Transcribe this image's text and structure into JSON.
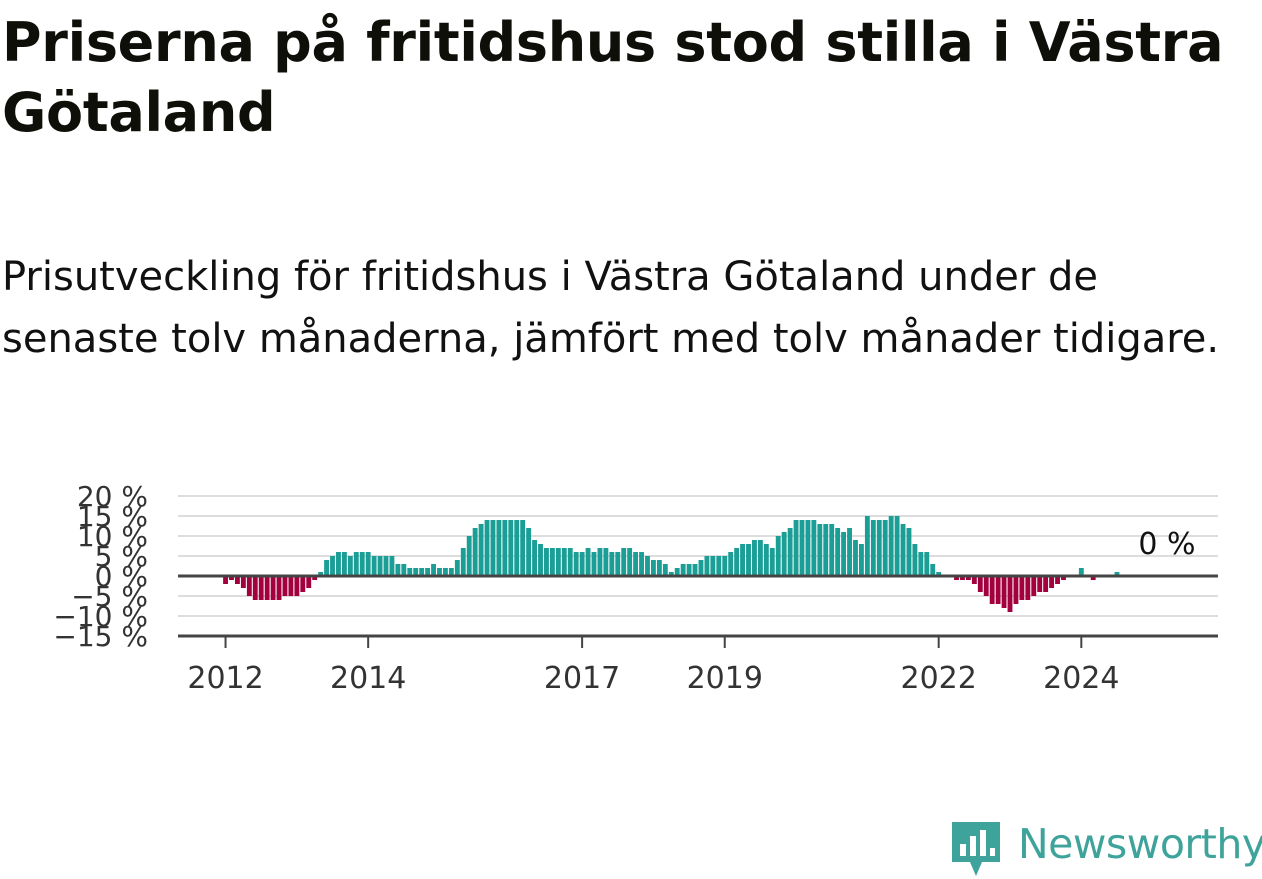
{
  "title": "Priserna på fritidshus stod stilla i Västra Götaland",
  "subtitle": "Prisutveckling för fritidshus i Västra Götaland under de senaste tolv månaderna, jämfört med tolv månader tidigare.",
  "brand": {
    "name": "Newsworthy",
    "icon": "newsworthy-logo-icon"
  },
  "colors": {
    "positive": "#1a9e96",
    "negative": "#a3003e",
    "grid": "#dddddd",
    "zero_line": "#444444",
    "axis_text": "#333333"
  },
  "chart_data": {
    "type": "bar",
    "x_ticks": [
      "2012",
      "2014",
      "2017",
      "2019",
      "2022",
      "2024"
    ],
    "y_ticks": [
      "20 %",
      "15 %",
      "10 %",
      "5 %",
      "0 %",
      "−5 %",
      "−10 %",
      "−15 %"
    ],
    "y_tick_values": [
      20,
      15,
      10,
      5,
      0,
      -5,
      -10,
      -15
    ],
    "ylim": [
      -15,
      20
    ],
    "xlim": [
      "2011-05",
      "2025-12"
    ],
    "grid": true,
    "last_value_label": "0 %",
    "series": [
      {
        "start": "2012-01",
        "frequency": "monthly",
        "values": [
          -2,
          -1,
          -2,
          -3,
          -5,
          -6,
          -6,
          -6,
          -6,
          -6,
          -5,
          -5,
          -5,
          -4,
          -3,
          -1,
          1,
          4,
          5,
          6,
          6,
          5,
          6,
          6,
          6,
          5,
          5,
          5,
          5,
          3,
          3,
          2,
          2,
          2,
          2,
          3,
          2,
          2,
          2,
          4,
          7,
          10,
          12,
          13,
          14,
          14,
          14,
          14,
          14,
          14,
          14,
          12,
          9,
          8,
          7,
          7,
          7,
          7,
          7,
          6,
          6,
          7,
          6,
          7,
          7,
          6,
          6,
          7,
          7,
          6,
          6,
          5,
          4,
          4,
          3,
          1,
          2,
          3,
          3,
          3,
          4,
          5,
          5,
          5,
          5,
          6,
          7,
          8,
          8,
          9,
          9,
          8,
          7,
          10,
          11,
          12,
          14,
          14,
          14,
          14,
          13,
          13,
          13,
          12,
          11,
          12,
          9,
          8,
          15,
          14,
          14,
          14,
          15,
          15,
          13,
          12,
          8,
          6,
          6,
          3,
          1,
          0,
          0,
          -1,
          -1,
          -1,
          -2,
          -4,
          -5,
          -7,
          -7,
          -8,
          -9,
          -7,
          -6,
          -6,
          -5,
          -4,
          -4,
          -3,
          -2,
          -1,
          0,
          0,
          2,
          0,
          -1,
          0,
          0,
          0,
          1,
          0
        ]
      }
    ]
  }
}
